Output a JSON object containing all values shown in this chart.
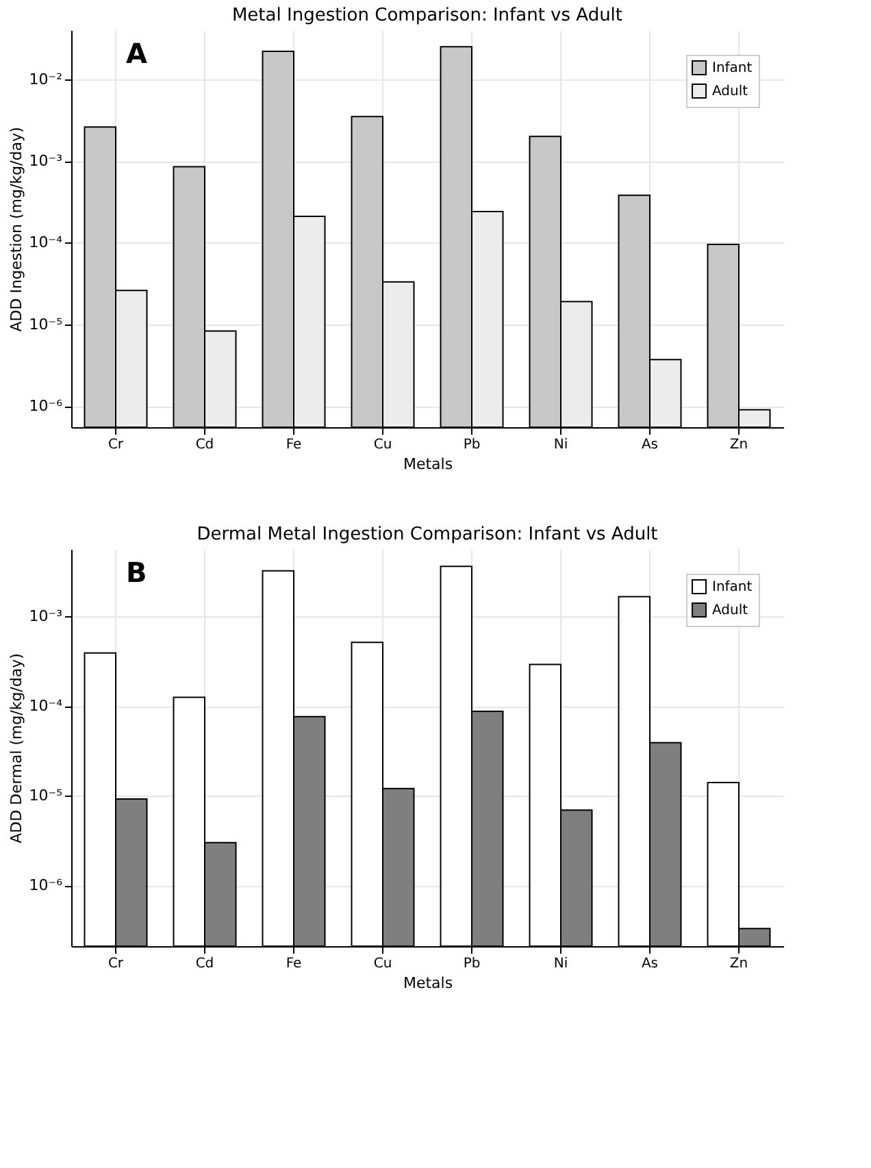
{
  "chart_data": [
    {
      "type": "bar",
      "title": "Metal Ingestion Comparison: Infant vs Adult",
      "xlabel": "Metals",
      "ylabel": "ADD Ingestion (mg/kg/day)",
      "categories": [
        "Cr",
        "Cd",
        "Fe",
        "Cu",
        "Pb",
        "Ni",
        "As",
        "Zn"
      ],
      "series": [
        {
          "name": "Infant",
          "color": "#c8c8c8",
          "values": [
            0.0026,
            0.00085,
            0.022,
            0.0035,
            0.025,
            0.002,
            0.00038,
            9.5e-05
          ]
        },
        {
          "name": "Adult",
          "color": "#ececec",
          "values": [
            2.6e-05,
            8.3e-06,
            0.00021,
            3.3e-05,
            0.00024,
            1.9e-05,
            3.7e-06,
            9e-07
          ]
        }
      ],
      "log": true,
      "ylim": [
        5.5e-07,
        0.04
      ],
      "yticks": [
        {
          "value": 1e-06,
          "label": "10⁻⁶"
        },
        {
          "value": 1e-05,
          "label": "10⁻⁵"
        },
        {
          "value": 0.0001,
          "label": "10⁻⁴"
        },
        {
          "value": 0.001,
          "label": "10⁻³"
        },
        {
          "value": 0.01,
          "label": "10⁻²"
        }
      ],
      "grid": true,
      "legend": "top right",
      "annotations": [
        "A"
      ]
    },
    {
      "type": "bar",
      "title": "Dermal Metal Ingestion Comparison: Infant vs Adult",
      "xlabel": "Metals",
      "ylabel": "ADD Dermal (mg/kg/day)",
      "categories": [
        "Cr",
        "Cd",
        "Fe",
        "Cu",
        "Pb",
        "Ni",
        "As",
        "Zn"
      ],
      "series": [
        {
          "name": "Infant",
          "color": "#ffffff",
          "values": [
            0.00039,
            0.000125,
            0.0032,
            0.00051,
            0.0036,
            0.00029,
            0.00165,
            1.4e-05
          ]
        },
        {
          "name": "Adult",
          "color": "#7f7f7f",
          "values": [
            9.2e-06,
            3e-06,
            7.6e-05,
            1.2e-05,
            8.7e-05,
            6.9e-06,
            3.9e-05,
            3.3e-07
          ]
        }
      ],
      "log": true,
      "ylim": [
        2.1e-07,
        0.0056
      ],
      "yticks": [
        {
          "value": 1e-06,
          "label": "10⁻⁶"
        },
        {
          "value": 1e-05,
          "label": "10⁻⁵"
        },
        {
          "value": 0.0001,
          "label": "10⁻⁴"
        },
        {
          "value": 0.001,
          "label": "10⁻³"
        }
      ],
      "grid": true,
      "legend": "top right",
      "annotations": [
        "B"
      ]
    }
  ]
}
